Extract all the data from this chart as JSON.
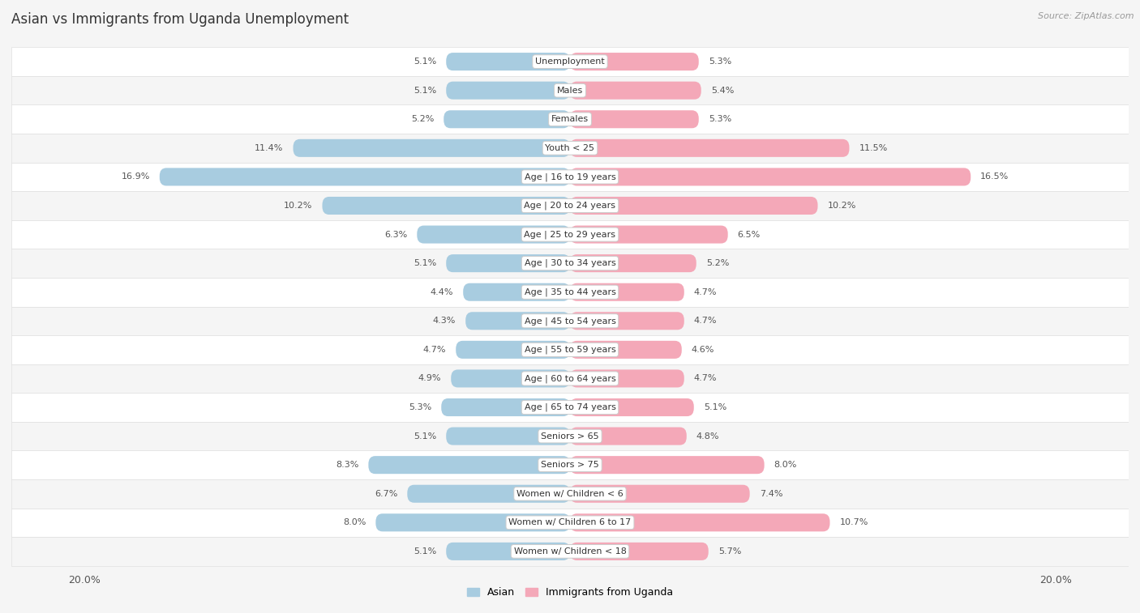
{
  "title": "Asian vs Immigrants from Uganda Unemployment",
  "source": "Source: ZipAtlas.com",
  "categories": [
    "Unemployment",
    "Males",
    "Females",
    "Youth < 25",
    "Age | 16 to 19 years",
    "Age | 20 to 24 years",
    "Age | 25 to 29 years",
    "Age | 30 to 34 years",
    "Age | 35 to 44 years",
    "Age | 45 to 54 years",
    "Age | 55 to 59 years",
    "Age | 60 to 64 years",
    "Age | 65 to 74 years",
    "Seniors > 65",
    "Seniors > 75",
    "Women w/ Children < 6",
    "Women w/ Children 6 to 17",
    "Women w/ Children < 18"
  ],
  "asian_values": [
    5.1,
    5.1,
    5.2,
    11.4,
    16.9,
    10.2,
    6.3,
    5.1,
    4.4,
    4.3,
    4.7,
    4.9,
    5.3,
    5.1,
    8.3,
    6.7,
    8.0,
    5.1
  ],
  "uganda_values": [
    5.3,
    5.4,
    5.3,
    11.5,
    16.5,
    10.2,
    6.5,
    5.2,
    4.7,
    4.7,
    4.6,
    4.7,
    5.1,
    4.8,
    8.0,
    7.4,
    10.7,
    5.7
  ],
  "asian_color": "#a8cce0",
  "uganda_color": "#f4a8b8",
  "axis_max": 20.0,
  "bg_light": "#f5f5f5",
  "bg_white": "#ffffff",
  "row_divider": "#e0e0e0",
  "legend_asian": "Asian",
  "legend_uganda": "Immigrants from Uganda"
}
